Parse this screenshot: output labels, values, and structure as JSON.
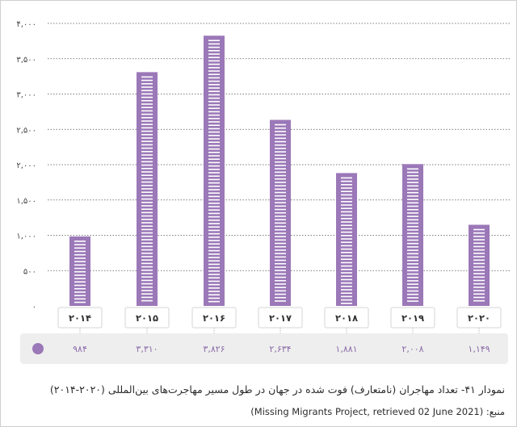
{
  "chart_data": {
    "type": "bar",
    "title": "نمودار ۴۱- تعداد مهاجران (نامتعارف) فوت شده در جهان در طول مسیر مهاجرت‌های بین‌المللی (۲۰۲۰-۲۰۱۴)",
    "source": "منبع: (Missing Migrants Project, retrieved 02 June 2021)",
    "categories": [
      "۲۰۱۴",
      "۲۰۱۵",
      "۲۰۱۶",
      "۲۰۱۷",
      "۲۰۱۸",
      "۲۰۱۹",
      "۲۰۲۰"
    ],
    "values": [
      984,
      3310,
      3826,
      2634,
      1881,
      2008,
      1149
    ],
    "value_labels": [
      "۹۸۴",
      "۳,۳۱۰",
      "۳,۸۲۶",
      "۲,۶۳۴",
      "۱,۸۸۱",
      "۲,۰۰۸",
      "۱,۱۴۹"
    ],
    "yticks": [
      0,
      500,
      1000,
      1500,
      2000,
      2500,
      3000,
      3500,
      4000
    ],
    "ytick_labels": [
      "۰",
      "۵۰۰",
      "۱,۰۰۰",
      "۱,۵۰۰",
      "۲,۰۰۰",
      "۲,۵۰۰",
      "۳,۰۰۰",
      "۳,۵۰۰",
      "۴,۰۰۰"
    ],
    "ylim": [
      0,
      4000
    ],
    "grid": true,
    "legend": "bottom-table",
    "colors": {
      "bar": "#9b78b8",
      "bar_stripe": "#ffffff",
      "grid": "#555555",
      "label_text": "#8a6aa8",
      "legend_marker": "#9b78b8",
      "value_row_bg": "#eeeeee"
    }
  }
}
